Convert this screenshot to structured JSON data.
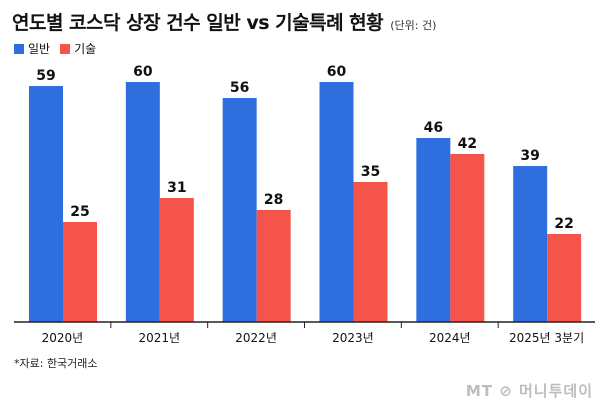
{
  "title": "연도별 코스닥 상장 건수 일반 vs 기술특례 현황",
  "unit": "(단위: 건)",
  "source": "*자료: 한국거래소",
  "watermark": "MT ⊘ 머니투데이",
  "colors": {
    "general": "#2F6EDF",
    "tech": "#F4544A",
    "axis": "#222222"
  },
  "chart_data": {
    "type": "bar",
    "title": "연도별 코스닥 상장 건수 일반 vs 기술특례 현황",
    "ylabel": "",
    "xlabel": "",
    "ylim": [
      0,
      65
    ],
    "categories": [
      "2020년",
      "2021년",
      "2022년",
      "2023년",
      "2024년",
      "2025년 3분기"
    ],
    "series": [
      {
        "name": "일반",
        "values": [
          59,
          60,
          56,
          60,
          46,
          39
        ]
      },
      {
        "name": "기술",
        "values": [
          25,
          31,
          28,
          35,
          42,
          22
        ]
      }
    ],
    "legend": "top-left",
    "grid": false
  }
}
